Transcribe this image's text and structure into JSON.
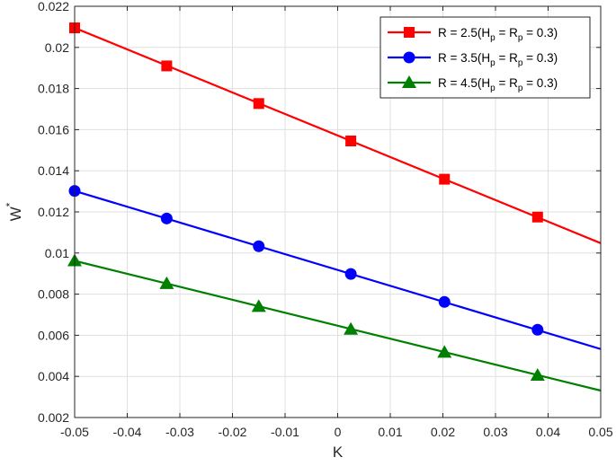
{
  "chart_data": {
    "type": "line",
    "xlabel": "K",
    "ylabel": "W",
    "ylabel_superscript": "*",
    "xlim": [
      -0.05,
      0.05
    ],
    "ylim": [
      0.002,
      0.022
    ],
    "xticks": [
      "-0.05",
      "-0.04",
      "-0.03",
      "-0.02",
      "-0.01",
      "0",
      "0.01",
      "0.02",
      "0.03",
      "0.04",
      "0.05"
    ],
    "yticks": [
      "0.002",
      "0.004",
      "0.006",
      "0.008",
      "0.01",
      "0.012",
      "0.014",
      "0.016",
      "0.018",
      "0.02",
      "0.022"
    ],
    "grid": true,
    "legend_position": "top-right",
    "series": [
      {
        "name": "R = 2.5(H_p = R_p = 0.3)",
        "legend": {
          "pre": "R = 2.5(H",
          "sub1": "p",
          "mid": " = R",
          "sub2": "p",
          "post": " = 0.3)"
        },
        "color": "#ff0000",
        "marker": "square",
        "line": {
          "x": [
            -0.05,
            0.05
          ],
          "y": [
            0.02095,
            0.01048
          ]
        },
        "markers": {
          "x": [
            -0.05,
            -0.0325,
            -0.015,
            0.0025,
            0.0203,
            0.038
          ],
          "y": [
            0.02095,
            0.0191,
            0.01727,
            0.01545,
            0.01359,
            0.01175
          ]
        }
      },
      {
        "name": "R = 3.5(H_p = R_p = 0.3)",
        "legend": {
          "pre": "R = 3.5(H",
          "sub1": "p",
          "mid": " = R",
          "sub2": "p",
          "post": " = 0.3)"
        },
        "color": "#0000ff",
        "marker": "circle",
        "line": {
          "x": [
            -0.05,
            0.05
          ],
          "y": [
            0.01302,
            0.00533
          ]
        },
        "markers": {
          "x": [
            -0.05,
            -0.0325,
            -0.015,
            0.0025,
            0.0203,
            0.038
          ],
          "y": [
            0.01302,
            0.01168,
            0.01033,
            0.00898,
            0.00762,
            0.00627
          ]
        }
      },
      {
        "name": "R = 4.5(H_p = R_p = 0.3)",
        "legend": {
          "pre": "R = 4.5(H",
          "sub1": "p",
          "mid": " = R",
          "sub2": "p",
          "post": " = 0.3)"
        },
        "color": "#008000",
        "marker": "triangle",
        "line": {
          "x": [
            -0.05,
            0.05
          ],
          "y": [
            0.00962,
            0.00331
          ]
        },
        "markers": {
          "x": [
            -0.05,
            -0.0325,
            -0.015,
            0.0025,
            0.0203,
            0.038
          ],
          "y": [
            0.00962,
            0.00851,
            0.0074,
            0.00629,
            0.00517,
            0.00405
          ]
        }
      }
    ]
  }
}
